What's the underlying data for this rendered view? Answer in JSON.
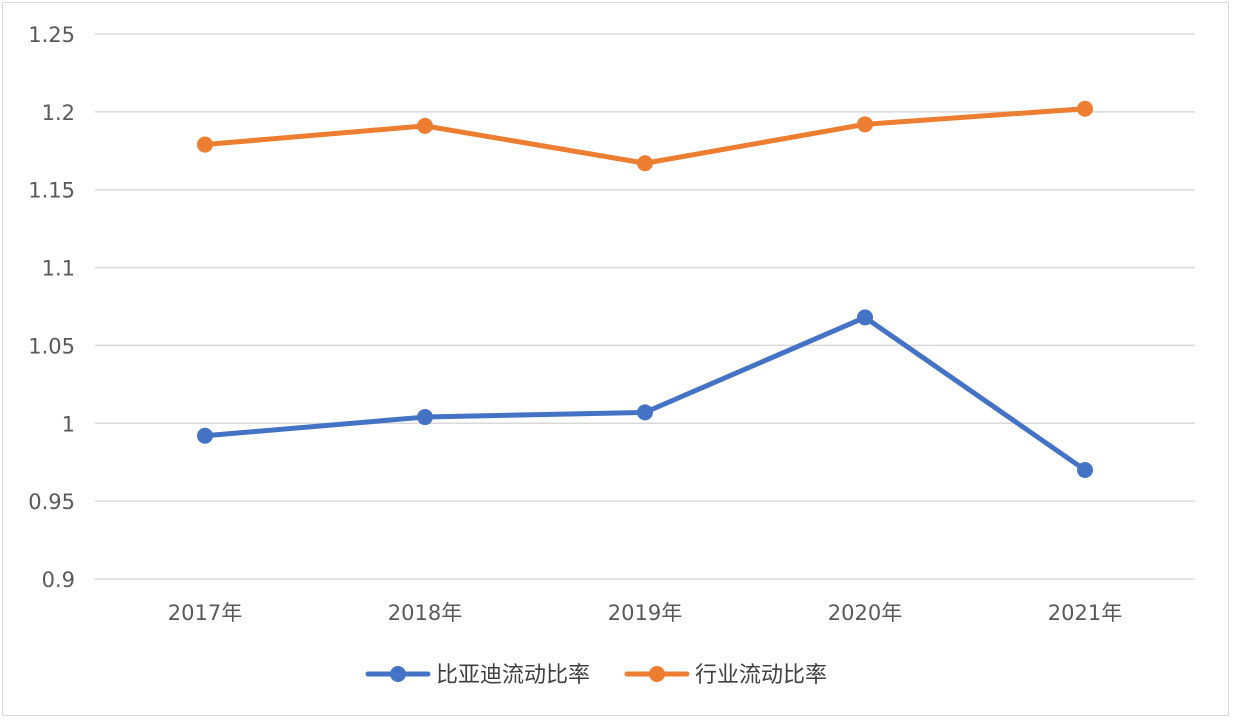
{
  "chart_data": {
    "type": "line",
    "categories": [
      "2017年",
      "2018年",
      "2019年",
      "2020年",
      "2021年"
    ],
    "y_ticks": [
      "0.9",
      "0.95",
      "1",
      "1.05",
      "1.1",
      "1.15",
      "1.2",
      "1.25"
    ],
    "ylim": [
      0.9,
      1.25
    ],
    "grid": true,
    "legend_position": "bottom",
    "series": [
      {
        "name": "比亚迪流动比率",
        "color": "#4472c4",
        "values": [
          0.992,
          1.004,
          1.007,
          1.068,
          0.97
        ]
      },
      {
        "name": "行业流动比率",
        "color": "#ed7d31",
        "values": [
          1.179,
          1.191,
          1.167,
          1.192,
          1.202
        ]
      }
    ]
  }
}
